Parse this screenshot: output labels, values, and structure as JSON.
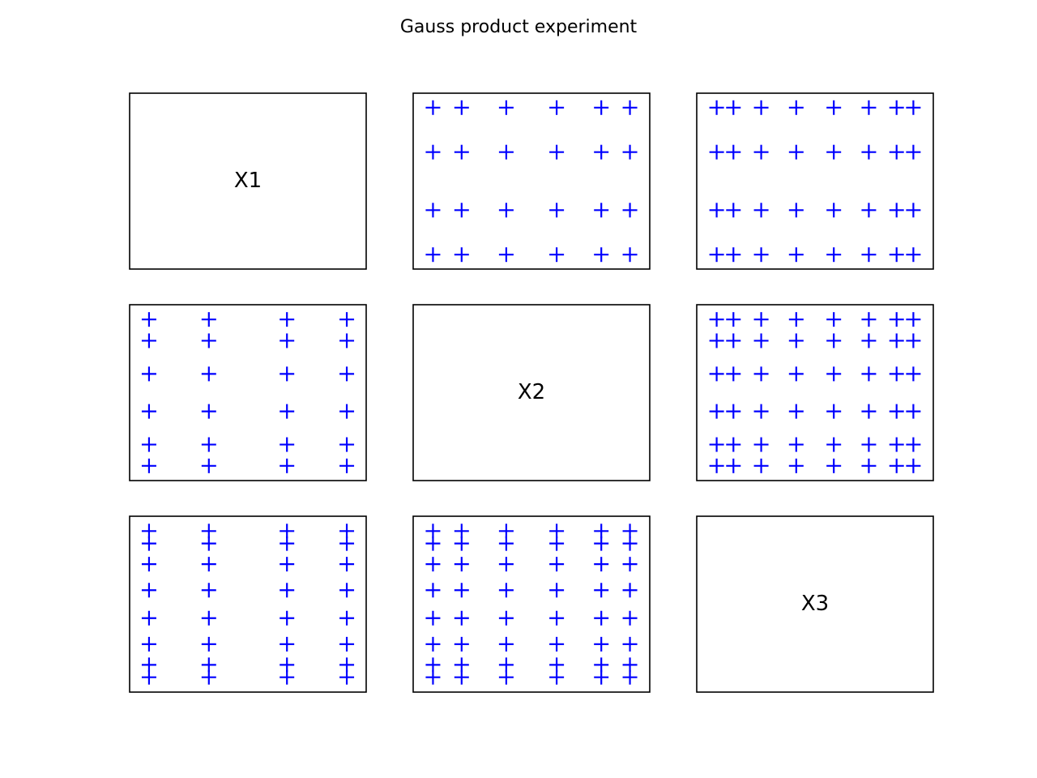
{
  "chart_data": {
    "type": "pair-scatter",
    "title": "Gauss product experiment",
    "marker": "+",
    "color": "#0000ff",
    "variables": [
      {
        "name": "X1",
        "nodes": [
          -0.8611,
          -0.34,
          0.34,
          0.8611
        ],
        "lim": [
          -1.03,
          1.03
        ]
      },
      {
        "name": "X2",
        "nodes": [
          -0.9325,
          -0.6612,
          -0.2386,
          0.2386,
          0.6612,
          0.9325
        ],
        "lim": [
          -1.12,
          1.12
        ]
      },
      {
        "name": "X3",
        "nodes": [
          -0.9603,
          -0.7967,
          -0.5255,
          -0.1834,
          0.1834,
          0.5255,
          0.7967,
          0.9603
        ],
        "lim": [
          -1.155,
          1.155
        ]
      }
    ]
  }
}
